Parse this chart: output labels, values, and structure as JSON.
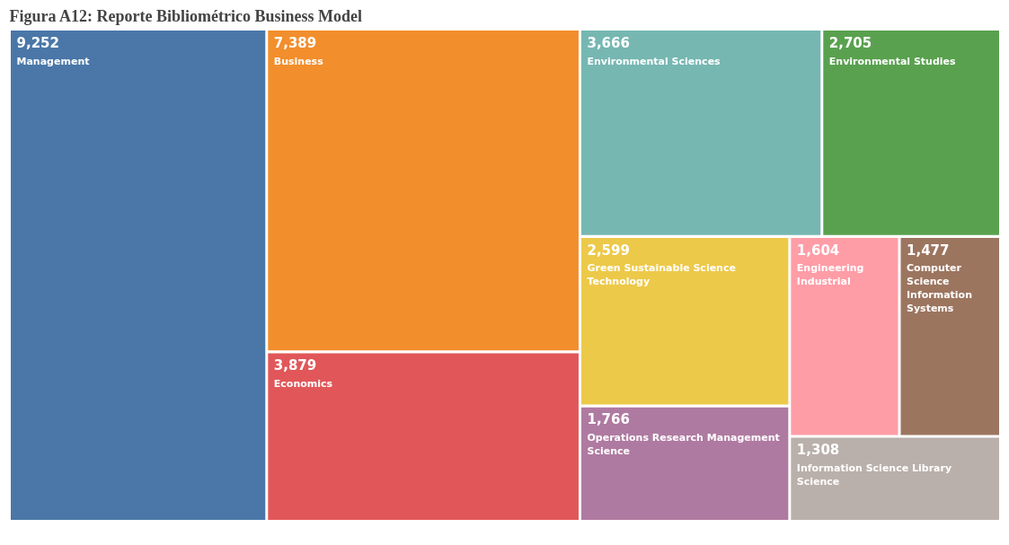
{
  "chart_data": {
    "type": "other",
    "title": "Figura A12: Reporte Bibliométrico Business Model",
    "categories": [
      "Management",
      "Business",
      "Economics",
      "Environmental Sciences",
      "Environmental Studies",
      "Green Sustainable Science Technology",
      "Operations Research Management Science",
      "Engineering Industrial",
      "Computer Science Information Systems",
      "Information Science Library Science"
    ],
    "values": [
      9252,
      7389,
      3879,
      3666,
      2705,
      2599,
      1766,
      1604,
      1477,
      1308
    ],
    "colors": [
      "#4a77a8",
      "#f28e2c",
      "#e15759",
      "#76b7b2",
      "#59a14f",
      "#edc949",
      "#af7aa1",
      "#ff9da7",
      "#9c755f",
      "#bab0ab"
    ],
    "value_labels": [
      "9,252",
      "7,389",
      "3,879",
      "3,666",
      "2,705",
      "2,599",
      "1,766",
      "1,604",
      "1,477",
      "1,308"
    ]
  }
}
